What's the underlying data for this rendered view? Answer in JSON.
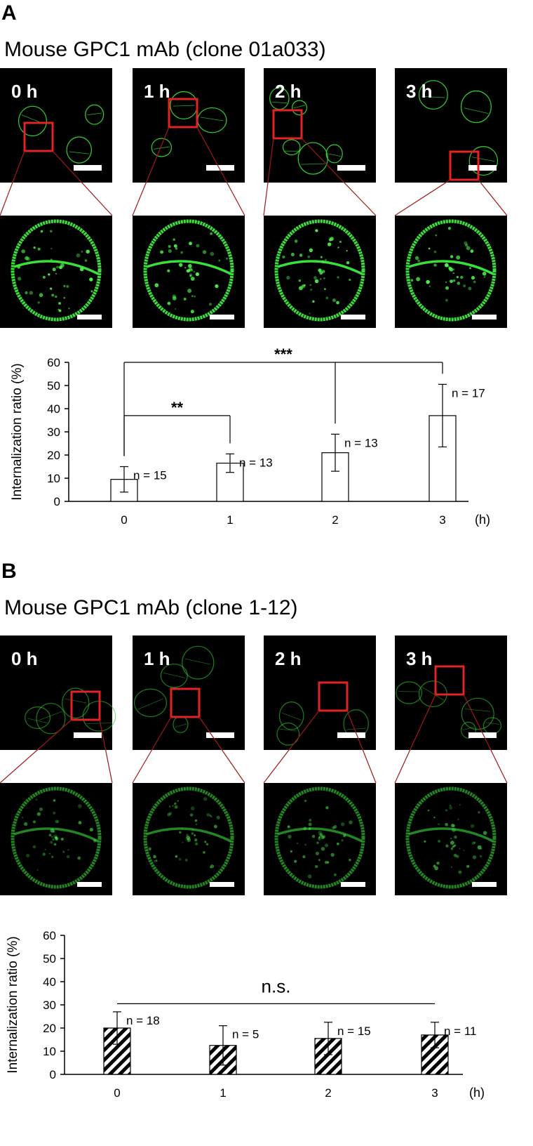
{
  "panels": [
    {
      "label": "A",
      "title": "Mouse GPC1 mAb (clone 01a033)",
      "times": [
        "0 h",
        "1 h",
        "2 h",
        "3 h"
      ]
    },
    {
      "label": "B",
      "title": "Mouse GPC1 mAb (clone 1-12)",
      "times": [
        "0 h",
        "1 h",
        "2 h",
        "3 h"
      ]
    }
  ],
  "chart_data": [
    {
      "type": "bar",
      "y_label": "Internalization ratio (%)",
      "x_unit": "(h)",
      "categories": [
        "0",
        "1",
        "2",
        "3"
      ],
      "values": [
        9.5,
        16.5,
        21,
        37
      ],
      "errors": [
        5.5,
        4,
        8,
        13.5
      ],
      "n_labels": [
        "n = 15",
        "n = 13",
        "n = 13",
        "n = 17"
      ],
      "ylim": [
        0,
        60
      ],
      "yticks": [
        0,
        10,
        20,
        30,
        40,
        50,
        60
      ],
      "color": "#ffffff",
      "hatch": false,
      "significance": [
        {
          "label": "**",
          "from": 0,
          "to": 1,
          "ends": true
        },
        {
          "label": "***",
          "from": 0,
          "to": 3,
          "drops": [
            2
          ],
          "ends": true
        }
      ]
    },
    {
      "type": "bar",
      "y_label": "Internalization ratio (%)",
      "x_unit": "(h)",
      "categories": [
        "0",
        "1",
        "2",
        "3"
      ],
      "values": [
        20,
        12.5,
        15.5,
        17
      ],
      "errors": [
        7,
        8.5,
        7,
        5.5
      ],
      "n_labels": [
        "n = 18",
        "n = 5",
        "n = 15",
        "n = 11"
      ],
      "ylim": [
        0,
        60
      ],
      "yticks": [
        0,
        10,
        20,
        30,
        40,
        50,
        60
      ],
      "color": "#ffffff",
      "hatch": true,
      "significance": [
        {
          "label": "n.s.",
          "from": 0,
          "to": 3,
          "ends": false
        }
      ]
    }
  ]
}
